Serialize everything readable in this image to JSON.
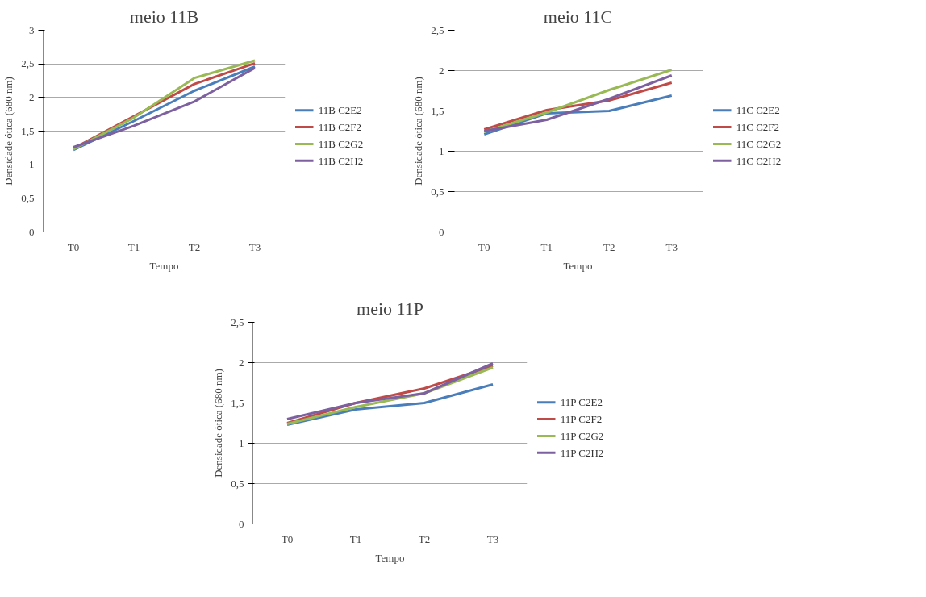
{
  "chart_data": [
    {
      "type": "line",
      "title": "meio 11B",
      "xlabel": "Tempo",
      "ylabel": "Densidade ótica (680 nm)",
      "categories": [
        "T0",
        "T1",
        "T2",
        "T3"
      ],
      "ylim": [
        0,
        3
      ],
      "yticks": [
        0,
        {
          "value": 0.5,
          "label": "0,5"
        },
        1,
        {
          "value": 1.5,
          "label": "1,5"
        },
        2,
        {
          "value": 2.5,
          "label": "2,5"
        },
        3
      ],
      "grid": "y",
      "legend": "right",
      "series": [
        {
          "name": "11B C2E2",
          "color": "#4a7ebb",
          "values": [
            1.22,
            1.65,
            2.1,
            2.46
          ]
        },
        {
          "name": "11B C2F2",
          "color": "#be4b48",
          "values": [
            1.24,
            1.72,
            2.2,
            2.51
          ]
        },
        {
          "name": "11B C2G2",
          "color": "#98b954",
          "values": [
            1.23,
            1.7,
            2.29,
            2.55
          ]
        },
        {
          "name": "11B C2H2",
          "color": "#7d60a0",
          "values": [
            1.26,
            1.58,
            1.94,
            2.44
          ]
        }
      ]
    },
    {
      "type": "line",
      "title": "meio 11C",
      "xlabel": "Tempo",
      "ylabel": "Densidade ótica (680 nm)",
      "categories": [
        "T0",
        "T1",
        "T2",
        "T3"
      ],
      "ylim": [
        0,
        2.5
      ],
      "yticks": [
        0,
        {
          "value": 0.5,
          "label": "0,5"
        },
        1,
        {
          "value": 1.5,
          "label": "1,5"
        },
        2,
        {
          "value": 2.5,
          "label": "2,5"
        }
      ],
      "grid": "y",
      "legend": "right",
      "series": [
        {
          "name": "11C C2E2",
          "color": "#4a7ebb",
          "values": [
            1.21,
            1.47,
            1.5,
            1.69
          ]
        },
        {
          "name": "11C C2F2",
          "color": "#be4b48",
          "values": [
            1.27,
            1.51,
            1.63,
            1.85
          ]
        },
        {
          "name": "11C C2G2",
          "color": "#98b954",
          "values": [
            1.24,
            1.48,
            1.76,
            2.01
          ]
        },
        {
          "name": "11C C2H2",
          "color": "#7d60a0",
          "values": [
            1.25,
            1.39,
            1.65,
            1.94
          ]
        }
      ]
    },
    {
      "type": "line",
      "title": "meio 11P",
      "xlabel": "Tempo",
      "ylabel": "Densidade ótica (680 nm)",
      "categories": [
        "T0",
        "T1",
        "T2",
        "T3"
      ],
      "ylim": [
        0,
        2.5
      ],
      "yticks": [
        0,
        {
          "value": 0.5,
          "label": "0,5"
        },
        1,
        {
          "value": 1.5,
          "label": "1,5"
        },
        2,
        {
          "value": 2.5,
          "label": "2,5"
        }
      ],
      "grid": "y",
      "legend": "right",
      "series": [
        {
          "name": "11P C2E2",
          "color": "#4a7ebb",
          "values": [
            1.23,
            1.42,
            1.5,
            1.73
          ]
        },
        {
          "name": "11P C2F2",
          "color": "#be4b48",
          "values": [
            1.25,
            1.5,
            1.68,
            1.96
          ]
        },
        {
          "name": "11P C2G2",
          "color": "#98b954",
          "values": [
            1.24,
            1.45,
            1.62,
            1.94
          ]
        },
        {
          "name": "11P C2H2",
          "color": "#7d60a0",
          "values": [
            1.3,
            1.5,
            1.62,
            1.99
          ]
        }
      ]
    }
  ]
}
